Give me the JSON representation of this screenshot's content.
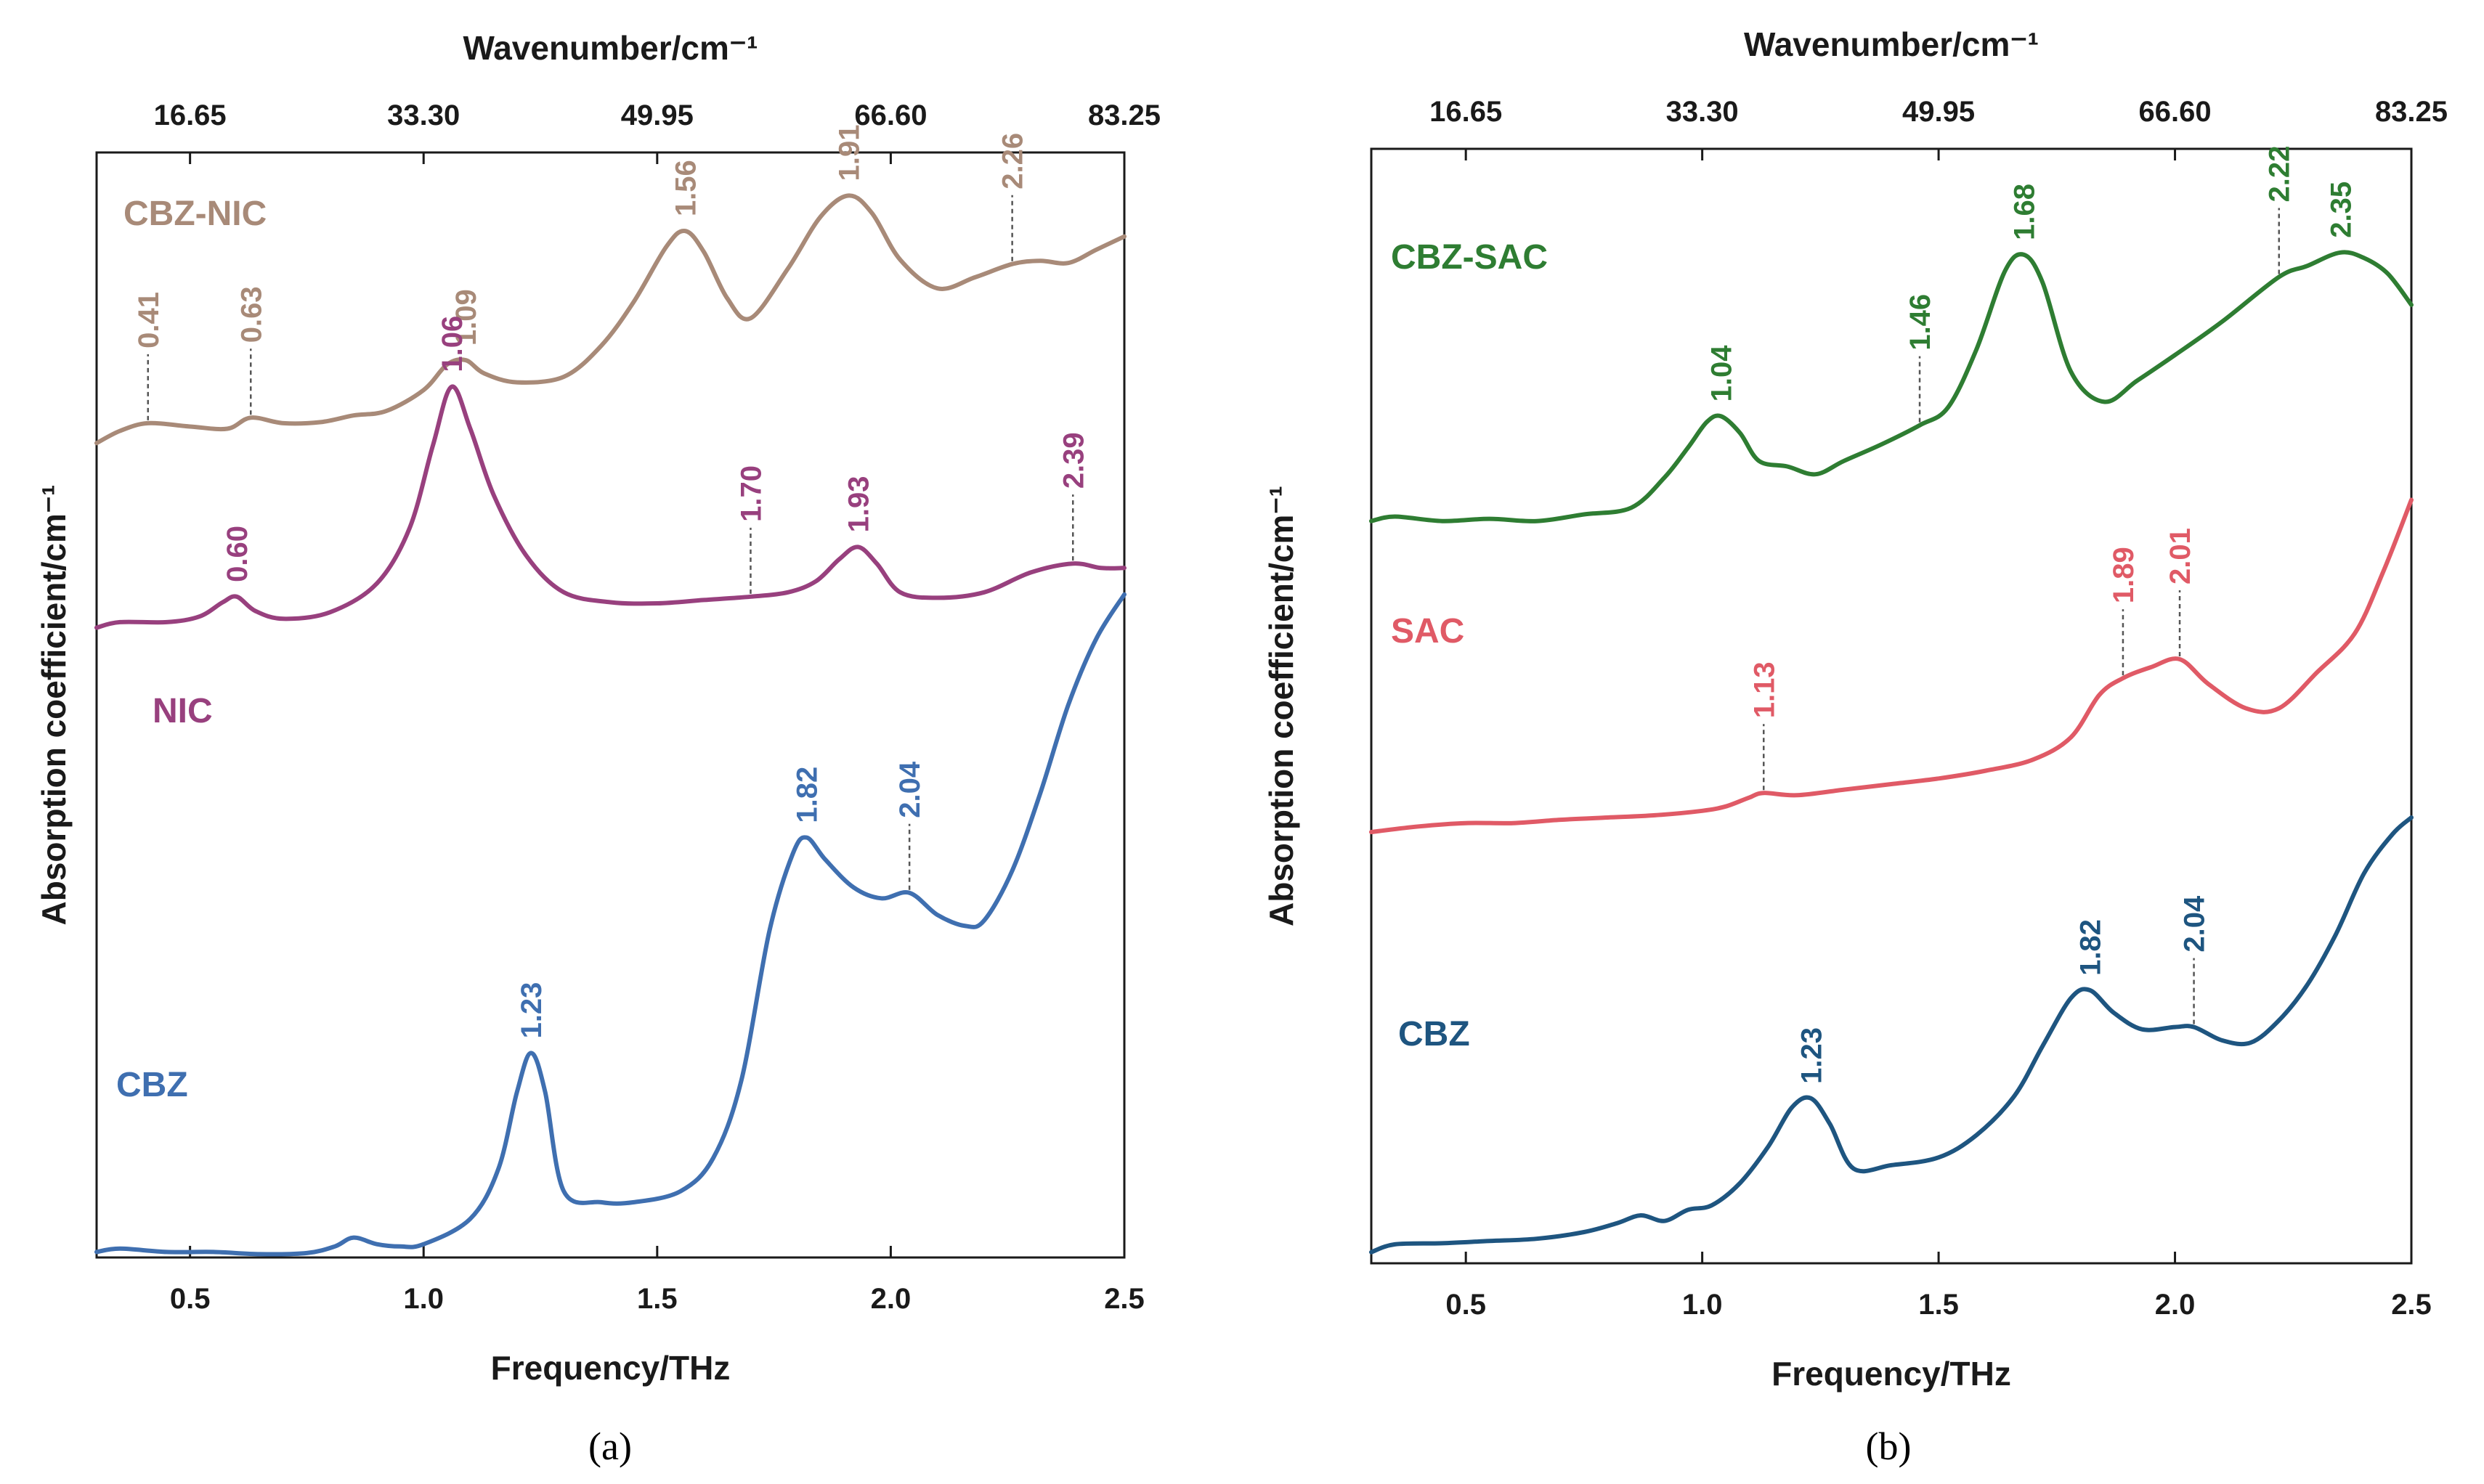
{
  "chart_data": [
    {
      "type": "line",
      "panel_label": "(a)",
      "xlabel": "Frequency/THz",
      "x2label": "Wavenumber/cm⁻¹",
      "ylabel": "Absorption coefficient/cm⁻¹",
      "xlim": [
        0.3,
        2.5
      ],
      "x_ticks": [
        0.5,
        1.0,
        1.5,
        2.0,
        2.5
      ],
      "x_tick_labels": [
        "0.5",
        "1.0",
        "1.5",
        "2.0",
        "2.5"
      ],
      "x2_ticks": [
        0.5,
        1.0,
        1.5,
        2.0,
        2.5
      ],
      "x2_tick_labels": [
        "16.65",
        "33.30",
        "49.95",
        "66.60",
        "83.25"
      ],
      "ylim": [
        0,
        10
      ],
      "y_ticks_shown": false,
      "series": [
        {
          "name": "CBZ-NIC",
          "color": "#A88A78",
          "x": [
            0.3,
            0.35,
            0.41,
            0.5,
            0.58,
            0.63,
            0.7,
            0.78,
            0.85,
            0.92,
            1.0,
            1.05,
            1.09,
            1.13,
            1.2,
            1.3,
            1.38,
            1.45,
            1.52,
            1.56,
            1.6,
            1.65,
            1.7,
            1.78,
            1.85,
            1.91,
            1.96,
            2.02,
            2.1,
            2.18,
            2.26,
            2.32,
            2.38,
            2.44,
            2.5
          ],
          "y": [
            7.37,
            7.48,
            7.55,
            7.52,
            7.5,
            7.6,
            7.55,
            7.56,
            7.62,
            7.66,
            7.85,
            8.08,
            8.12,
            8.0,
            7.92,
            7.97,
            8.25,
            8.65,
            9.15,
            9.29,
            9.1,
            8.68,
            8.5,
            8.95,
            9.42,
            9.61,
            9.45,
            9.03,
            8.77,
            8.87,
            8.99,
            9.02,
            9.0,
            9.12,
            9.24
          ]
        },
        {
          "name": "NIC",
          "color": "#98407E",
          "x": [
            0.3,
            0.35,
            0.45,
            0.52,
            0.57,
            0.6,
            0.64,
            0.7,
            0.8,
            0.9,
            0.97,
            1.02,
            1.06,
            1.1,
            1.15,
            1.22,
            1.3,
            1.4,
            1.5,
            1.6,
            1.7,
            1.78,
            1.84,
            1.89,
            1.93,
            1.97,
            2.02,
            2.1,
            2.2,
            2.3,
            2.39,
            2.45,
            2.5
          ],
          "y": [
            5.7,
            5.75,
            5.75,
            5.8,
            5.93,
            5.98,
            5.85,
            5.78,
            5.84,
            6.1,
            6.6,
            7.35,
            7.88,
            7.5,
            6.9,
            6.35,
            6.02,
            5.93,
            5.92,
            5.95,
            5.98,
            6.02,
            6.12,
            6.32,
            6.43,
            6.28,
            6.02,
            5.97,
            6.02,
            6.2,
            6.28,
            6.24,
            6.24
          ]
        },
        {
          "name": "CBZ",
          "color": "#3F6FB0",
          "x": [
            0.3,
            0.35,
            0.45,
            0.55,
            0.65,
            0.75,
            0.81,
            0.85,
            0.9,
            0.95,
            1.0,
            1.1,
            1.16,
            1.2,
            1.23,
            1.26,
            1.3,
            1.38,
            1.45,
            1.55,
            1.62,
            1.68,
            1.74,
            1.79,
            1.82,
            1.86,
            1.92,
            1.98,
            2.04,
            2.1,
            2.16,
            2.2,
            2.26,
            2.32,
            2.38,
            2.44,
            2.5
          ],
          "y": [
            0.05,
            0.08,
            0.05,
            0.05,
            0.03,
            0.04,
            0.1,
            0.18,
            0.12,
            0.1,
            0.12,
            0.35,
            0.8,
            1.5,
            1.85,
            1.5,
            0.6,
            0.5,
            0.5,
            0.6,
            0.9,
            1.6,
            2.95,
            3.65,
            3.8,
            3.6,
            3.35,
            3.25,
            3.3,
            3.1,
            3.0,
            3.05,
            3.5,
            4.2,
            5.0,
            5.6,
            6.0
          ]
        }
      ],
      "annotations": [
        {
          "series": "CBZ-NIC",
          "label": "0.41",
          "x": 0.41,
          "leader": true
        },
        {
          "series": "CBZ-NIC",
          "label": "0.63",
          "x": 0.63,
          "leader": true
        },
        {
          "series": "CBZ-NIC",
          "label": "1.09",
          "x": 1.09,
          "leader": false
        },
        {
          "series": "CBZ-NIC",
          "label": "1.56",
          "x": 1.56,
          "leader": false
        },
        {
          "series": "CBZ-NIC",
          "label": "1.91",
          "x": 1.91,
          "leader": false
        },
        {
          "series": "CBZ-NIC",
          "label": "2.26",
          "x": 2.26,
          "leader": true
        },
        {
          "series": "NIC",
          "label": "0.60",
          "x": 0.6,
          "leader": false
        },
        {
          "series": "NIC",
          "label": "1.06",
          "x": 1.06,
          "leader": false
        },
        {
          "series": "NIC",
          "label": "1.70",
          "x": 1.7,
          "leader": true
        },
        {
          "series": "NIC",
          "label": "1.93",
          "x": 1.93,
          "leader": false
        },
        {
          "series": "NIC",
          "label": "2.39",
          "x": 2.39,
          "leader": true
        },
        {
          "series": "CBZ",
          "label": "1.23",
          "x": 1.23,
          "leader": false
        },
        {
          "series": "CBZ",
          "label": "1.82",
          "x": 1.82,
          "leader": false
        },
        {
          "series": "CBZ",
          "label": "2.04",
          "x": 2.04,
          "leader": true
        }
      ]
    },
    {
      "type": "line",
      "panel_label": "(b)",
      "xlabel": "Frequency/THz",
      "x2label": "Wavenumber/cm⁻¹",
      "ylabel": "Absorption coefficient/cm⁻¹",
      "xlim": [
        0.3,
        2.5
      ],
      "x_ticks": [
        0.5,
        1.0,
        1.5,
        2.0,
        2.5
      ],
      "x_tick_labels": [
        "0.5",
        "1.0",
        "1.5",
        "2.0",
        "2.5"
      ],
      "x2_ticks": [
        0.5,
        1.0,
        1.5,
        2.0,
        2.5
      ],
      "x2_tick_labels": [
        "16.65",
        "33.30",
        "49.95",
        "66.60",
        "83.25"
      ],
      "ylim": [
        0,
        10
      ],
      "y_ticks_shown": false,
      "series": [
        {
          "name": "CBZ-SAC",
          "color": "#2E7D32",
          "x": [
            0.3,
            0.35,
            0.45,
            0.55,
            0.65,
            0.75,
            0.85,
            0.92,
            0.97,
            1.01,
            1.04,
            1.08,
            1.12,
            1.18,
            1.24,
            1.3,
            1.38,
            1.46,
            1.52,
            1.58,
            1.64,
            1.68,
            1.72,
            1.78,
            1.85,
            1.92,
            2.0,
            2.1,
            2.22,
            2.28,
            2.35,
            2.4,
            2.45,
            2.5
          ],
          "y": [
            6.66,
            6.7,
            6.66,
            6.68,
            6.66,
            6.72,
            6.78,
            7.05,
            7.32,
            7.55,
            7.6,
            7.45,
            7.2,
            7.15,
            7.08,
            7.2,
            7.35,
            7.52,
            7.68,
            8.2,
            8.9,
            9.05,
            8.8,
            8.0,
            7.73,
            7.92,
            8.15,
            8.45,
            8.85,
            8.95,
            9.07,
            9.02,
            8.88,
            8.6
          ]
        },
        {
          "name": "SAC",
          "color": "#E05A66",
          "x": [
            0.3,
            0.4,
            0.5,
            0.6,
            0.7,
            0.8,
            0.9,
            1.0,
            1.05,
            1.1,
            1.13,
            1.2,
            1.3,
            1.4,
            1.5,
            1.6,
            1.7,
            1.78,
            1.84,
            1.89,
            1.95,
            2.01,
            2.07,
            2.15,
            2.22,
            2.3,
            2.38,
            2.44,
            2.5
          ],
          "y": [
            3.87,
            3.92,
            3.95,
            3.95,
            3.98,
            4.0,
            4.02,
            4.06,
            4.1,
            4.18,
            4.22,
            4.2,
            4.25,
            4.3,
            4.35,
            4.42,
            4.52,
            4.72,
            5.1,
            5.25,
            5.35,
            5.42,
            5.2,
            4.98,
            4.98,
            5.3,
            5.65,
            6.2,
            6.85
          ]
        },
        {
          "name": "CBZ",
          "color": "#1E5580",
          "x": [
            0.3,
            0.35,
            0.45,
            0.55,
            0.65,
            0.75,
            0.82,
            0.87,
            0.92,
            0.97,
            1.02,
            1.08,
            1.14,
            1.19,
            1.23,
            1.27,
            1.32,
            1.4,
            1.5,
            1.58,
            1.66,
            1.72,
            1.78,
            1.82,
            1.87,
            1.93,
            2.0,
            2.04,
            2.1,
            2.16,
            2.22,
            2.28,
            2.34,
            2.4,
            2.46,
            2.5
          ],
          "y": [
            0.1,
            0.17,
            0.18,
            0.2,
            0.22,
            0.28,
            0.36,
            0.43,
            0.38,
            0.48,
            0.52,
            0.72,
            1.05,
            1.4,
            1.48,
            1.25,
            0.85,
            0.88,
            0.95,
            1.15,
            1.5,
            1.95,
            2.38,
            2.45,
            2.25,
            2.1,
            2.12,
            2.12,
            2.0,
            1.98,
            2.18,
            2.5,
            2.95,
            3.5,
            3.85,
            4.0
          ]
        }
      ],
      "annotations": [
        {
          "series": "CBZ-SAC",
          "label": "1.04",
          "x": 1.04,
          "leader": false
        },
        {
          "series": "CBZ-SAC",
          "label": "1.46",
          "x": 1.46,
          "leader": true
        },
        {
          "series": "CBZ-SAC",
          "label": "1.68",
          "x": 1.68,
          "leader": false
        },
        {
          "series": "CBZ-SAC",
          "label": "2.22",
          "x": 2.22,
          "leader": true
        },
        {
          "series": "CBZ-SAC",
          "label": "2.35",
          "x": 2.35,
          "leader": false
        },
        {
          "series": "SAC",
          "label": "1.13",
          "x": 1.13,
          "leader": true
        },
        {
          "series": "SAC",
          "label": "1.89",
          "x": 1.89,
          "leader": true
        },
        {
          "series": "SAC",
          "label": "2.01",
          "x": 2.01,
          "leader": true
        },
        {
          "series": "CBZ",
          "label": "1.23",
          "x": 1.23,
          "leader": false
        },
        {
          "series": "CBZ",
          "label": "1.82",
          "x": 1.82,
          "leader": false
        },
        {
          "series": "CBZ",
          "label": "2.04",
          "x": 2.04,
          "leader": true
        }
      ]
    }
  ]
}
